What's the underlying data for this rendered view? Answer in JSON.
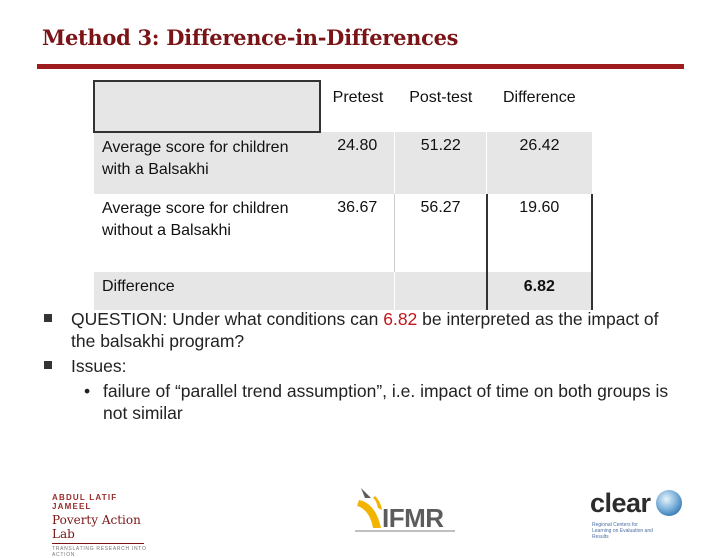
{
  "title": "Method 3: Difference-in-Differences",
  "table": {
    "corner": "",
    "columns": [
      "Pretest",
      "Post-test",
      "Difference"
    ],
    "rows": [
      {
        "label": "Average score for children with a Balsakhi",
        "pretest": "24.80",
        "posttest": "51.22",
        "difference": "26.42"
      },
      {
        "label": "Average score for children without a Balsakhi",
        "pretest": "36.67",
        "posttest": "56.27",
        "difference": "19.60"
      }
    ],
    "diff_row": {
      "label": "Difference",
      "value": "6.82"
    }
  },
  "bullets": {
    "q_prefix": "QUESTION: Under what conditions can ",
    "q_value": "6.82",
    "q_suffix": " be interpreted as the impact of the balsakhi program?",
    "issues": "Issues:",
    "sub": "failure of “parallel trend assumption”, i.e. impact of time on both groups is not similar"
  },
  "logos": {
    "left_line1": "ABDUL LATIF JAMEEL",
    "left_line2": "Poverty Action Lab",
    "left_line3": "TRANSLATING RESEARCH INTO ACTION",
    "mid": "IFMR",
    "right": "clear",
    "right_sub": "Regional Centers for Learning on Evaluation and Results"
  },
  "colors": {
    "title": "#7a1416",
    "accent": "#9e1b1e",
    "highlight": "#c0151a",
    "shade": "#e6e6e6"
  }
}
